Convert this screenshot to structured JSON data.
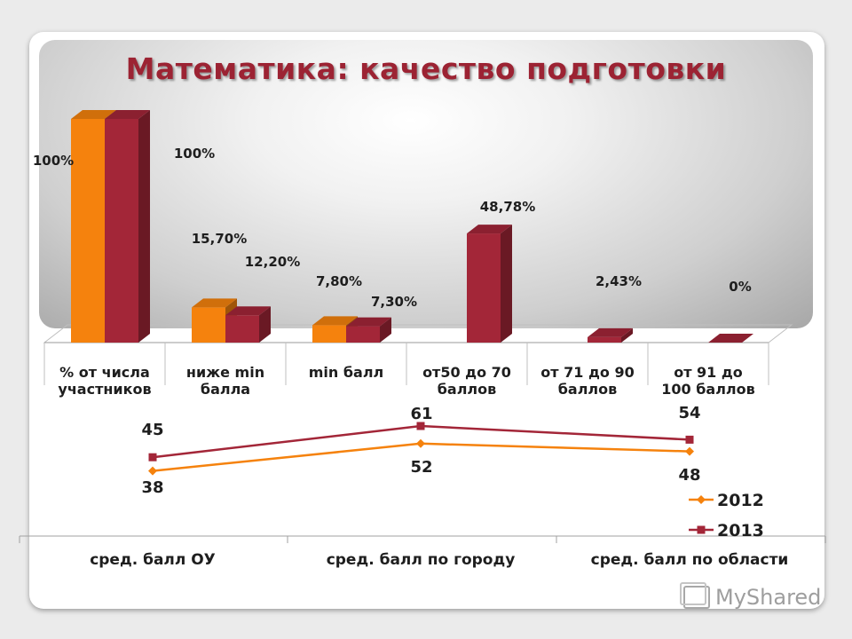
{
  "title": "Математика: качество подготовки",
  "chart_data": [
    {
      "type": "bar",
      "categories": [
        [
          "% от числа",
          "участников"
        ],
        [
          "ниже min",
          "балла"
        ],
        [
          "min балл"
        ],
        [
          "от50 до 70",
          "баллов"
        ],
        [
          "от 71 до 90",
          "баллов"
        ],
        [
          "от 91 до",
          "100 баллов"
        ]
      ],
      "series": [
        {
          "values": [
            100,
            15.7,
            7.8,
            null,
            null,
            null
          ],
          "labels": [
            "100%",
            "15,70%",
            "7,80%",
            "",
            "",
            ""
          ],
          "color": "#f5820d"
        },
        {
          "values": [
            100,
            12.2,
            7.3,
            48.78,
            2.43,
            0
          ],
          "labels": [
            "100%",
            "12,20%",
            "7,30%",
            "48,78%",
            "2,43%",
            "0%"
          ],
          "color": "#a32638"
        }
      ],
      "ylim": [
        0,
        100
      ],
      "grid": false
    },
    {
      "type": "line",
      "categories": [
        "сред. балл ОУ",
        "сред. балл по городу",
        "сред. балл по области"
      ],
      "series": [
        {
          "name": "2012",
          "values": [
            38,
            52,
            48
          ],
          "color": "#f5820d",
          "marker": "diamond"
        },
        {
          "name": "2013",
          "values": [
            45,
            61,
            54
          ],
          "color": "#a32638",
          "marker": "square"
        }
      ],
      "legend": "right",
      "grid": false
    }
  ],
  "watermark": {
    "text": "MyShared"
  }
}
